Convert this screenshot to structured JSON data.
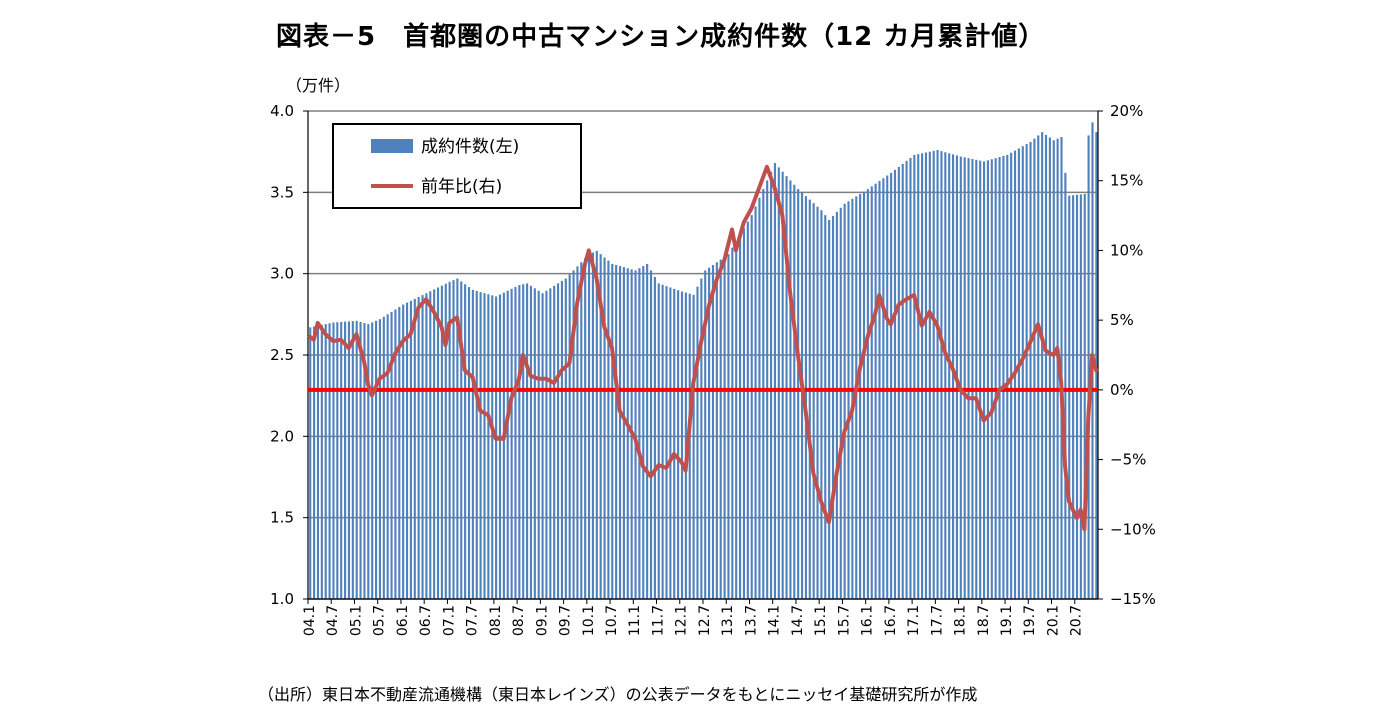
{
  "title": "図表－5　首都圏の中古マンション成約件数（12 カ月累計値）",
  "unit_label": "（万件）",
  "source_note": "（出所）東日本不動産流通機構（東日本レインズ）の公表データをもとにニッセイ基礎研究所が作成",
  "colors": {
    "bars": "#4f81bd",
    "line": "#c0504d",
    "zero_line": "#ff0000",
    "grid": "#7f7f7f"
  },
  "chart_data": {
    "type": "bar",
    "title": "図表－5　首都圏の中古マンション成約件数（12 カ月累計値）",
    "ylabel_left": "（万件）",
    "ylim_left": [
      1.0,
      4.0
    ],
    "yticks_left": [
      "1.0",
      "1.5",
      "2.0",
      "2.5",
      "3.0",
      "3.5",
      "4.0"
    ],
    "ylim_right": [
      -15,
      20
    ],
    "yticks_right": [
      "-15%",
      "-10%",
      "-5%",
      "0%",
      "5%",
      "10%",
      "15%",
      "20%"
    ],
    "grid": true,
    "legend_position": "top-left",
    "x_tick_labels": [
      "04.1",
      "04.7",
      "05.1",
      "05.7",
      "06.1",
      "06.7",
      "07.1",
      "07.7",
      "08.1",
      "08.7",
      "09.1",
      "09.7",
      "10.1",
      "10.7",
      "11.1",
      "11.7",
      "12.1",
      "12.7",
      "13.1",
      "13.7",
      "14.1",
      "14.7",
      "15.1",
      "15.7",
      "16.1",
      "16.7",
      "17.1",
      "17.7",
      "18.1",
      "18.7",
      "19.1",
      "19.7",
      "20.1",
      "20.7"
    ],
    "series": [
      {
        "name": "成約件数(左)",
        "type": "bar",
        "axis": "left",
        "anchors": [
          [
            "2004-01",
            2.67
          ],
          [
            "2004-07",
            2.7
          ],
          [
            "2005-01",
            2.71
          ],
          [
            "2005-04",
            2.69
          ],
          [
            "2005-07",
            2.72
          ],
          [
            "2006-01",
            2.81
          ],
          [
            "2006-07",
            2.88
          ],
          [
            "2007-01",
            2.95
          ],
          [
            "2007-03",
            2.97
          ],
          [
            "2007-07",
            2.9
          ],
          [
            "2008-01",
            2.86
          ],
          [
            "2008-07",
            2.93
          ],
          [
            "2008-09",
            2.94
          ],
          [
            "2009-01",
            2.88
          ],
          [
            "2009-07",
            2.97
          ],
          [
            "2010-01",
            3.12
          ],
          [
            "2010-03",
            3.14
          ],
          [
            "2010-07",
            3.06
          ],
          [
            "2011-01",
            3.02
          ],
          [
            "2011-04",
            3.06
          ],
          [
            "2011-07",
            2.94
          ],
          [
            "2012-01",
            2.89
          ],
          [
            "2012-04",
            2.87
          ],
          [
            "2012-07",
            3.02
          ],
          [
            "2013-01",
            3.12
          ],
          [
            "2013-07",
            3.36
          ],
          [
            "2014-01",
            3.68
          ],
          [
            "2014-07",
            3.52
          ],
          [
            "2015-01",
            3.39
          ],
          [
            "2015-03",
            3.33
          ],
          [
            "2015-07",
            3.43
          ],
          [
            "2016-01",
            3.52
          ],
          [
            "2016-07",
            3.62
          ],
          [
            "2017-01",
            3.73
          ],
          [
            "2017-07",
            3.76
          ],
          [
            "2018-01",
            3.72
          ],
          [
            "2018-07",
            3.69
          ],
          [
            "2019-01",
            3.73
          ],
          [
            "2019-07",
            3.81
          ],
          [
            "2019-10",
            3.87
          ],
          [
            "2020-01",
            3.82
          ],
          [
            "2020-03",
            3.84
          ],
          [
            "2020-04",
            3.62
          ],
          [
            "2020-05",
            3.48
          ],
          [
            "2020-09",
            3.49
          ],
          [
            "2020-10",
            3.85
          ],
          [
            "2020-11",
            3.93
          ],
          [
            "2020-12",
            3.87
          ]
        ]
      },
      {
        "name": "前年比(右)",
        "type": "line",
        "axis": "right",
        "anchors": [
          [
            "2004-01",
            3.8
          ],
          [
            "2004-02",
            3.6
          ],
          [
            "2004-03",
            4.8
          ],
          [
            "2004-05",
            4.0
          ],
          [
            "2004-07",
            3.5
          ],
          [
            "2004-09",
            3.6
          ],
          [
            "2004-11",
            3.0
          ],
          [
            "2005-01",
            4.0
          ],
          [
            "2005-03",
            2.0
          ],
          [
            "2005-04",
            0.4
          ],
          [
            "2005-05",
            -0.4
          ],
          [
            "2005-07",
            0.8
          ],
          [
            "2005-09",
            1.2
          ],
          [
            "2005-11",
            2.6
          ],
          [
            "2006-01",
            3.5
          ],
          [
            "2006-03",
            4.0
          ],
          [
            "2006-05",
            5.9
          ],
          [
            "2006-07",
            6.5
          ],
          [
            "2006-09",
            5.6
          ],
          [
            "2006-11",
            4.5
          ],
          [
            "2006-12",
            3.2
          ],
          [
            "2007-01",
            4.8
          ],
          [
            "2007-03",
            5.2
          ],
          [
            "2007-05",
            1.4
          ],
          [
            "2007-07",
            0.9
          ],
          [
            "2007-09",
            -1.5
          ],
          [
            "2007-11",
            -1.8
          ],
          [
            "2008-01",
            -3.5
          ],
          [
            "2008-03",
            -3.5
          ],
          [
            "2008-05",
            -0.6
          ],
          [
            "2008-07",
            0.8
          ],
          [
            "2008-08",
            2.5
          ],
          [
            "2008-10",
            1.0
          ],
          [
            "2008-12",
            0.8
          ],
          [
            "2009-02",
            0.8
          ],
          [
            "2009-04",
            0.5
          ],
          [
            "2009-06",
            1.4
          ],
          [
            "2009-08",
            1.9
          ],
          [
            "2009-10",
            6.2
          ],
          [
            "2009-12",
            9.0
          ],
          [
            "2010-01",
            10.0
          ],
          [
            "2010-03",
            8.0
          ],
          [
            "2010-05",
            4.5
          ],
          [
            "2010-07",
            3.0
          ],
          [
            "2010-09",
            -1.5
          ],
          [
            "2010-11",
            -2.5
          ],
          [
            "2011-01",
            -3.5
          ],
          [
            "2011-03",
            -5.5
          ],
          [
            "2011-05",
            -6.2
          ],
          [
            "2011-07",
            -5.4
          ],
          [
            "2011-09",
            -5.6
          ],
          [
            "2011-11",
            -4.6
          ],
          [
            "2012-01",
            -5.2
          ],
          [
            "2012-02",
            -5.8
          ],
          [
            "2012-04",
            0.5
          ],
          [
            "2012-06",
            3.4
          ],
          [
            "2012-08",
            6.0
          ],
          [
            "2012-10",
            7.9
          ],
          [
            "2012-12",
            9.3
          ],
          [
            "2013-02",
            11.5
          ],
          [
            "2013-03",
            10.0
          ],
          [
            "2013-05",
            12.0
          ],
          [
            "2013-07",
            13.0
          ],
          [
            "2013-09",
            14.5
          ],
          [
            "2013-11",
            16.0
          ],
          [
            "2014-01",
            14.5
          ],
          [
            "2014-03",
            12.5
          ],
          [
            "2014-05",
            7.0
          ],
          [
            "2014-07",
            2.5
          ],
          [
            "2014-09",
            -1.5
          ],
          [
            "2014-11",
            -6.0
          ],
          [
            "2015-01",
            -8.0
          ],
          [
            "2015-03",
            -9.5
          ],
          [
            "2015-05",
            -6.0
          ],
          [
            "2015-07",
            -3.0
          ],
          [
            "2015-09",
            -1.5
          ],
          [
            "2015-11",
            1.5
          ],
          [
            "2016-01",
            3.8
          ],
          [
            "2016-03",
            5.5
          ],
          [
            "2016-04",
            6.8
          ],
          [
            "2016-06",
            5.1
          ],
          [
            "2016-07",
            4.7
          ],
          [
            "2016-09",
            6.1
          ],
          [
            "2016-11",
            6.5
          ],
          [
            "2017-01",
            6.8
          ],
          [
            "2017-03",
            4.6
          ],
          [
            "2017-05",
            5.6
          ],
          [
            "2017-07",
            4.6
          ],
          [
            "2017-09",
            2.7
          ],
          [
            "2017-11",
            1.5
          ],
          [
            "2018-01",
            0.0
          ],
          [
            "2018-03",
            -0.6
          ],
          [
            "2018-05",
            -0.6
          ],
          [
            "2018-07",
            -2.2
          ],
          [
            "2018-09",
            -1.6
          ],
          [
            "2018-11",
            0.0
          ],
          [
            "2019-01",
            0.4
          ],
          [
            "2019-03",
            1.2
          ],
          [
            "2019-05",
            2.2
          ],
          [
            "2019-07",
            3.4
          ],
          [
            "2019-09",
            4.7
          ],
          [
            "2019-11",
            2.8
          ],
          [
            "2020-01",
            2.5
          ],
          [
            "2020-02",
            3.0
          ],
          [
            "2020-03",
            0.5
          ],
          [
            "2020-04",
            -5.5
          ],
          [
            "2020-05",
            -8.0
          ],
          [
            "2020-07",
            -9.2
          ],
          [
            "2020-08",
            -8.6
          ],
          [
            "2020-09",
            -10.0
          ],
          [
            "2020-10",
            -2.0
          ],
          [
            "2020-11",
            2.5
          ],
          [
            "2020-12",
            1.4
          ]
        ]
      }
    ],
    "reference_line_right": 0
  }
}
